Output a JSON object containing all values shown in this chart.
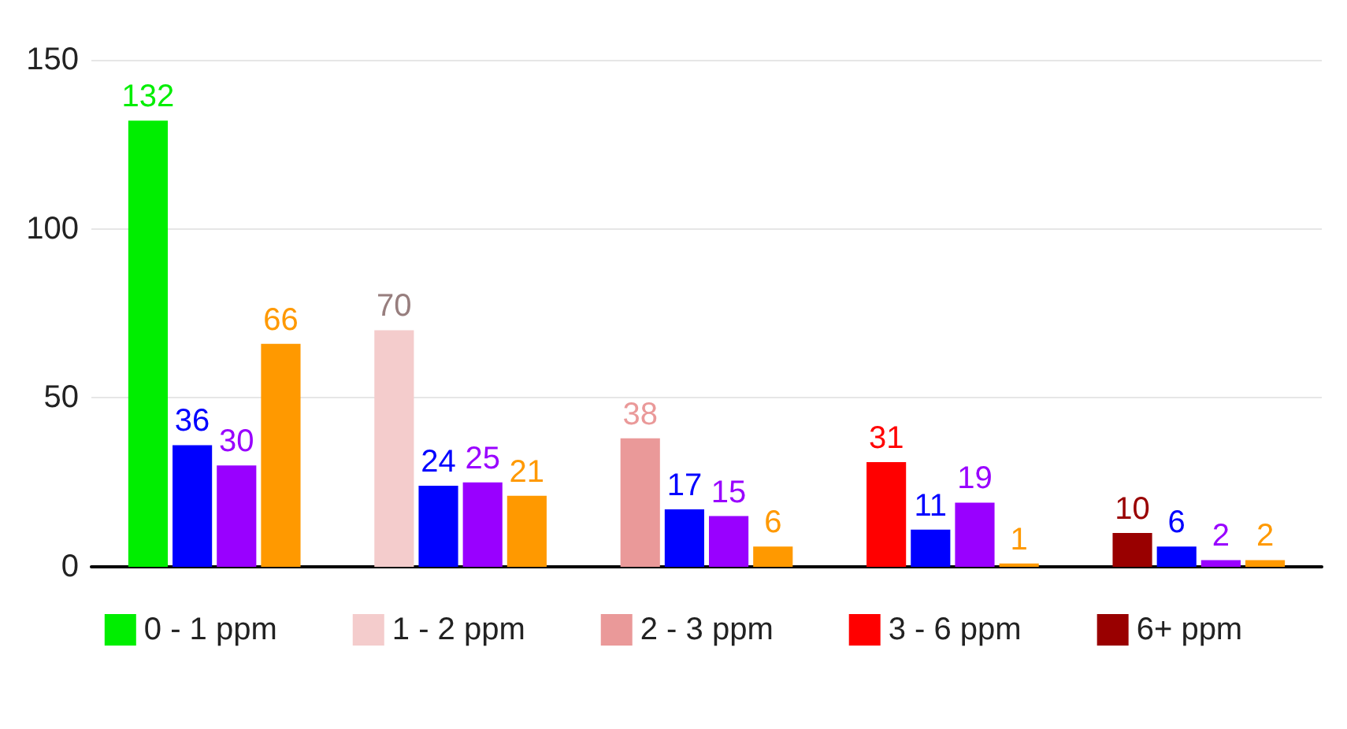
{
  "chart_data": {
    "type": "bar",
    "categories": [
      null,
      null,
      null,
      null,
      null
    ],
    "series": [
      {
        "name": "0 - 1 ppm",
        "color": "#00ee00",
        "values": [
          132,
          null,
          null,
          null,
          null
        ]
      },
      {
        "name": "1 - 2 ppm",
        "color": "#f4cccc",
        "values": [
          null,
          70,
          null,
          null,
          null
        ]
      },
      {
        "name": "2 - 3 ppm",
        "color": "#ea9999",
        "values": [
          null,
          null,
          38,
          null,
          null
        ]
      },
      {
        "name": "3 - 6 ppm",
        "color": "#ff0000",
        "values": [
          null,
          null,
          null,
          31,
          null
        ]
      },
      {
        "name": "6+ ppm",
        "color": "#990000",
        "values": [
          null,
          null,
          null,
          null,
          10
        ]
      },
      {
        "color": "#0000ff",
        "values": [
          36,
          24,
          17,
          11,
          6
        ]
      },
      {
        "color": "#9900ff",
        "values": [
          30,
          25,
          15,
          19,
          2
        ]
      },
      {
        "color": "#ff9900",
        "values": [
          66,
          21,
          6,
          1,
          2
        ]
      }
    ],
    "ylim": [
      0,
      150
    ],
    "yticks": [
      0,
      50,
      100,
      150
    ],
    "grid": "y",
    "tick_labels": "y",
    "data_labels": true,
    "legend": "bottom"
  }
}
